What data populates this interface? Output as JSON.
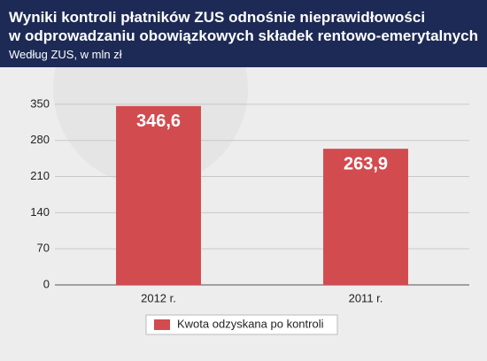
{
  "chart_data": {
    "type": "bar",
    "title": [
      "Wyniki kontroli płatników ZUS odnośnie nieprawidłowości",
      "w odprowadzaniu obowiązkowych składek rentowo-emerytalnych"
    ],
    "subtitle": "Według ZUS, w mln zł",
    "categories": [
      "2012 r.",
      "2011 r."
    ],
    "series": [
      {
        "name": "Kwota odzyskana po kontroli",
        "color": "#d24b4f",
        "values": [
          346.6,
          263.9
        ],
        "value_labels": [
          "346,6",
          "263,9"
        ]
      }
    ],
    "ylim": [
      0,
      385
    ],
    "yticks": [
      0,
      70,
      140,
      210,
      280,
      350
    ],
    "grid": true
  }
}
